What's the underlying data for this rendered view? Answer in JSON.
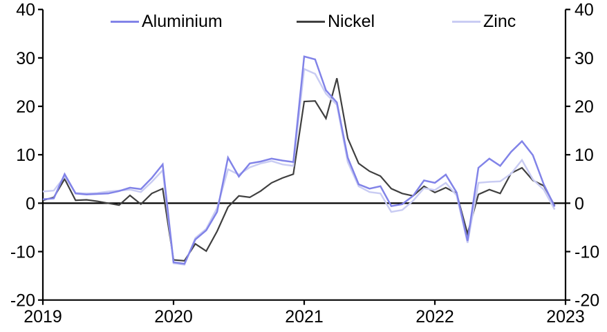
{
  "legend": {
    "items": [
      {
        "label": "Aluminium",
        "color": "#8183E8"
      },
      {
        "label": "Nickel",
        "color": "#3F3F3F"
      },
      {
        "label": "Zinc",
        "color": "#C9CCF3"
      }
    ]
  },
  "axes": {
    "y_left_ticks": [
      "40",
      "30",
      "20",
      "10",
      "0",
      "-10",
      "-20"
    ],
    "y_right_ticks": [
      "40",
      "30",
      "20",
      "10",
      "0",
      "-10",
      "-20"
    ],
    "x_ticks": [
      "2019",
      "2020",
      "2021",
      "2022",
      "2023"
    ]
  },
  "chart_data": {
    "type": "line",
    "x": [
      "2019-01",
      "2019-02",
      "2019-03",
      "2019-04",
      "2019-05",
      "2019-06",
      "2019-07",
      "2019-08",
      "2019-09",
      "2019-10",
      "2019-11",
      "2019-12",
      "2020-01",
      "2020-02",
      "2020-03",
      "2020-04",
      "2020-05",
      "2020-06",
      "2020-07",
      "2020-08",
      "2020-09",
      "2020-10",
      "2020-11",
      "2020-12",
      "2021-01",
      "2021-02",
      "2021-03",
      "2021-04",
      "2021-05",
      "2021-06",
      "2021-07",
      "2021-08",
      "2021-09",
      "2021-10",
      "2021-11",
      "2021-12",
      "2022-01",
      "2022-02",
      "2022-03",
      "2022-04",
      "2022-05",
      "2022-06",
      "2022-07",
      "2022-08",
      "2022-09",
      "2022-10",
      "2022-11",
      "2022-12"
    ],
    "x_axis_ticks": [
      2019,
      2020,
      2021,
      2022,
      2023
    ],
    "y_ticks": [
      -20,
      -10,
      0,
      10,
      20,
      30,
      40
    ],
    "ylim": [
      -20,
      40
    ],
    "grid": false,
    "zero_baseline": true,
    "dual_y_axis": true,
    "legend_position": "top",
    "series": [
      {
        "name": "Aluminium",
        "color": "#8183E8",
        "width": 2.5,
        "values": [
          0.8,
          1.0,
          6.0,
          2.0,
          1.8,
          1.9,
          2.0,
          2.5,
          3.2,
          2.9,
          5.2,
          8.0,
          -12.2,
          -12.5,
          -7.5,
          -5.6,
          -1.8,
          9.4,
          5.5,
          8.2,
          8.6,
          9.2,
          8.8,
          8.5,
          30.3,
          29.7,
          23.3,
          20.8,
          9.4,
          3.9,
          3.0,
          3.5,
          -0.6,
          -0.2,
          1.5,
          4.7,
          4.2,
          5.9,
          2.2,
          -7.8,
          7.3,
          9.2,
          7.7,
          10.6,
          12.8,
          9.9,
          3.9,
          -0.7
        ]
      },
      {
        "name": "Nickel",
        "color": "#3F3F3F",
        "width": 2.2,
        "values": [
          0.6,
          1.2,
          5.0,
          0.6,
          0.7,
          0.4,
          0.0,
          -0.4,
          1.6,
          -0.2,
          2.0,
          3.0,
          -11.7,
          -11.9,
          -8.4,
          -9.9,
          -5.8,
          -0.8,
          1.5,
          1.2,
          2.5,
          4.2,
          5.2,
          6.0,
          21.0,
          21.1,
          17.5,
          25.8,
          13.4,
          8.2,
          6.6,
          5.6,
          3.0,
          2.0,
          1.5,
          3.5,
          2.2,
          3.2,
          2.0,
          -6.3,
          1.8,
          2.8,
          2.0,
          6.2,
          7.3,
          4.7,
          3.6,
          -0.5
        ]
      },
      {
        "name": "Zinc",
        "color": "#C9CCF3",
        "width": 2.5,
        "values": [
          2.4,
          2.6,
          5.5,
          2.1,
          2.0,
          2.1,
          2.4,
          2.6,
          2.8,
          2.3,
          4.4,
          6.8,
          -12.4,
          -12.7,
          -7.2,
          -5.3,
          -1.0,
          7.0,
          5.9,
          7.4,
          8.2,
          8.7,
          8.0,
          7.7,
          27.7,
          26.7,
          22.6,
          20.3,
          8.5,
          3.5,
          2.3,
          2.0,
          -1.8,
          -1.4,
          0.5,
          3.1,
          2.7,
          4.2,
          1.6,
          -8.2,
          4.2,
          4.4,
          4.5,
          6.1,
          8.9,
          4.9,
          2.8,
          -1.3
        ]
      }
    ]
  }
}
